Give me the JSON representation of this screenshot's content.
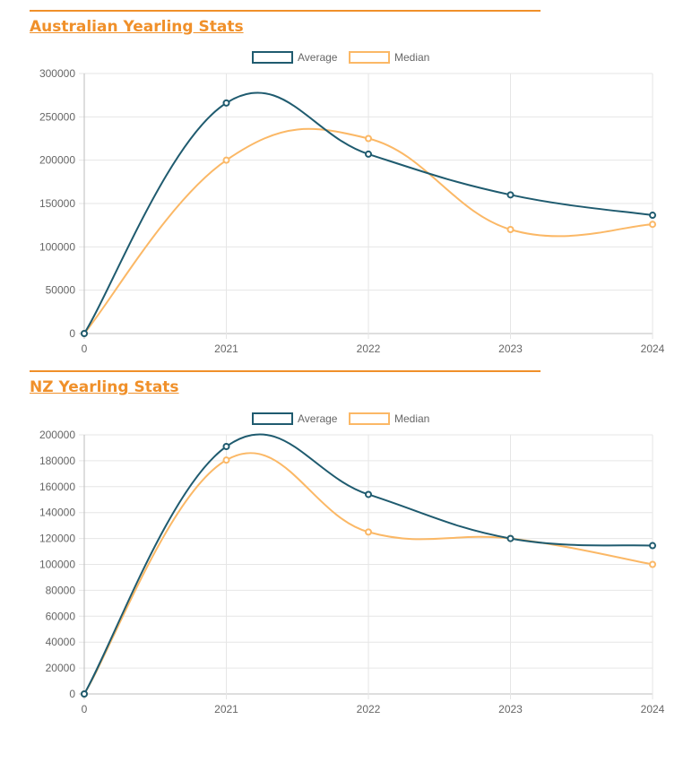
{
  "sections": [
    {
      "heading": "Australian Yearling Stats",
      "chart_data": {
        "type": "line",
        "x": [
          "0",
          "2021",
          "2022",
          "2023",
          "2024"
        ],
        "ylim": [
          0,
          300000
        ],
        "yticks": [
          0,
          50000,
          100000,
          150000,
          200000,
          250000,
          300000
        ],
        "grid": true,
        "legend": "top-center",
        "series": [
          {
            "name": "Average",
            "color": "#1f5b6f",
            "values": [
              0,
              266000,
              207000,
              160000,
              136500
            ]
          },
          {
            "name": "Median",
            "color": "#fbb866",
            "values": [
              0,
              200000,
              225000,
              120000,
              126000
            ]
          }
        ]
      }
    },
    {
      "heading": "NZ Yearling Stats",
      "chart_data": {
        "type": "line",
        "x": [
          "0",
          "2021",
          "2022",
          "2023",
          "2024"
        ],
        "ylim": [
          0,
          200000
        ],
        "yticks": [
          0,
          20000,
          40000,
          60000,
          80000,
          100000,
          120000,
          140000,
          160000,
          180000,
          200000
        ],
        "grid": true,
        "legend": "top-center",
        "series": [
          {
            "name": "Average",
            "color": "#1f5b6f",
            "values": [
              0,
              191000,
              154000,
              120000,
              114500
            ]
          },
          {
            "name": "Median",
            "color": "#fbb866",
            "values": [
              0,
              180500,
              125000,
              120000,
              100000
            ]
          }
        ]
      }
    }
  ]
}
